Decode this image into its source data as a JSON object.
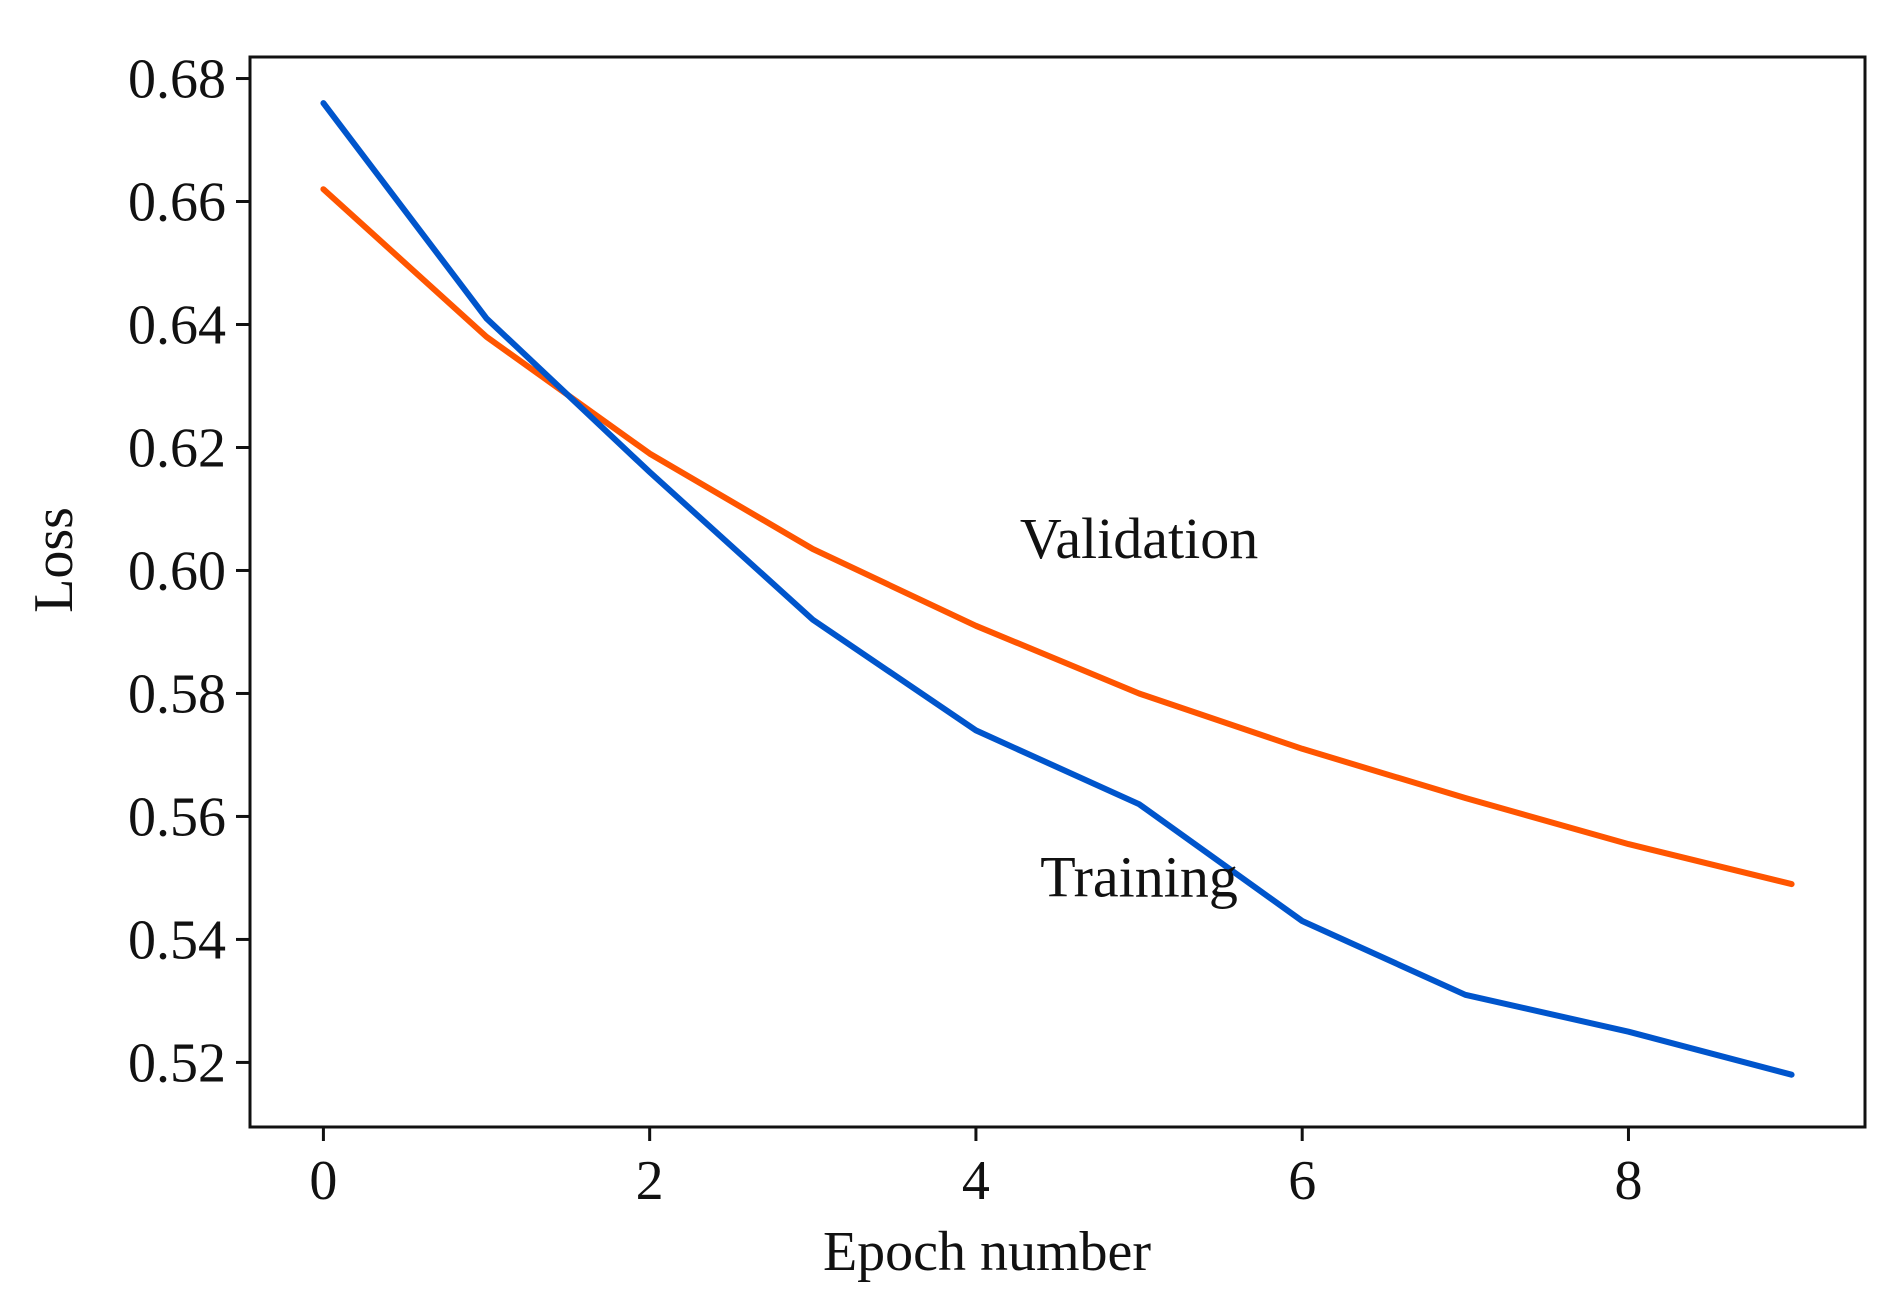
{
  "chart_data": {
    "type": "line",
    "title": "",
    "xlabel": "Epoch number",
    "ylabel": "Loss",
    "xlim": [
      -0.45,
      9.45
    ],
    "ylim": [
      0.5095,
      0.6835
    ],
    "xticks": [
      0,
      2,
      4,
      6,
      8
    ],
    "yticks": [
      0.52,
      0.54,
      0.56,
      0.58,
      0.6,
      0.62,
      0.64,
      0.66,
      0.68
    ],
    "xtick_labels": [
      "0",
      "2",
      "4",
      "6",
      "8"
    ],
    "ytick_labels": [
      "0.52",
      "0.54",
      "0.56",
      "0.58",
      "0.60",
      "0.62",
      "0.64",
      "0.66",
      "0.68"
    ],
    "grid": false,
    "legend": "none",
    "x": [
      0,
      1,
      2,
      3,
      4,
      5,
      6,
      7,
      8,
      9
    ],
    "series": [
      {
        "name": "Training",
        "label": "Training",
        "color": "#0055cc",
        "values": [
          0.676,
          0.641,
          0.616,
          0.592,
          0.574,
          0.562,
          0.543,
          0.531,
          0.525,
          0.518
        ]
      },
      {
        "name": "Validation",
        "label": "Validation",
        "color": "#ff5500",
        "values": [
          0.662,
          0.638,
          0.619,
          0.6035,
          0.591,
          0.58,
          0.571,
          0.563,
          0.5555,
          0.549
        ]
      }
    ],
    "annotations": [
      {
        "text": "Validation",
        "x": 5.0,
        "y": 0.602
      },
      {
        "text": "Training",
        "x": 5.0,
        "y": 0.547
      }
    ]
  }
}
